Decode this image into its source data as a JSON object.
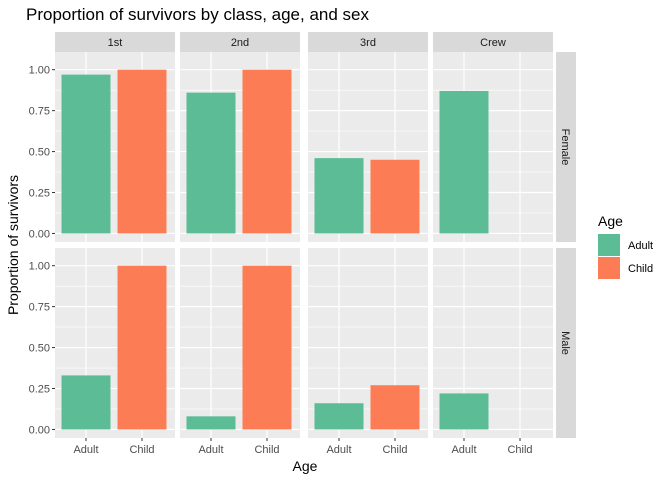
{
  "chart_data": {
    "type": "bar",
    "title": "Proportion of survivors by class, age, and sex",
    "xlabel": "Age",
    "ylabel": "Proportion of survivors",
    "ylim": [
      0,
      1.05
    ],
    "yticks": [
      "0.00",
      "0.25",
      "0.50",
      "0.75",
      "1.00"
    ],
    "ytick_values": [
      0,
      0.25,
      0.5,
      0.75,
      1.0
    ],
    "categories": [
      "Adult",
      "Child"
    ],
    "facet_cols": [
      "1st",
      "2nd",
      "3rd",
      "Crew"
    ],
    "facet_rows": [
      "Female",
      "Male"
    ],
    "values": {
      "Female": {
        "1st": [
          0.97,
          1.0
        ],
        "2nd": [
          0.86,
          1.0
        ],
        "3rd": [
          0.46,
          0.45
        ],
        "Crew": [
          0.87,
          null
        ]
      },
      "Male": {
        "1st": [
          0.33,
          1.0
        ],
        "2nd": [
          0.08,
          1.0
        ],
        "3rd": [
          0.16,
          0.27
        ],
        "Crew": [
          0.22,
          null
        ]
      }
    },
    "legend": {
      "title": "Age",
      "placement": "right",
      "items": [
        {
          "label": "Adult",
          "color": "#5BBC95"
        },
        {
          "label": "Child",
          "color": "#FC7D55"
        }
      ]
    },
    "colors": {
      "panel_bg": "#EBEBEB",
      "grid": "#FFFFFF",
      "strip_bg": "#D9D9D9"
    },
    "grid": true
  }
}
